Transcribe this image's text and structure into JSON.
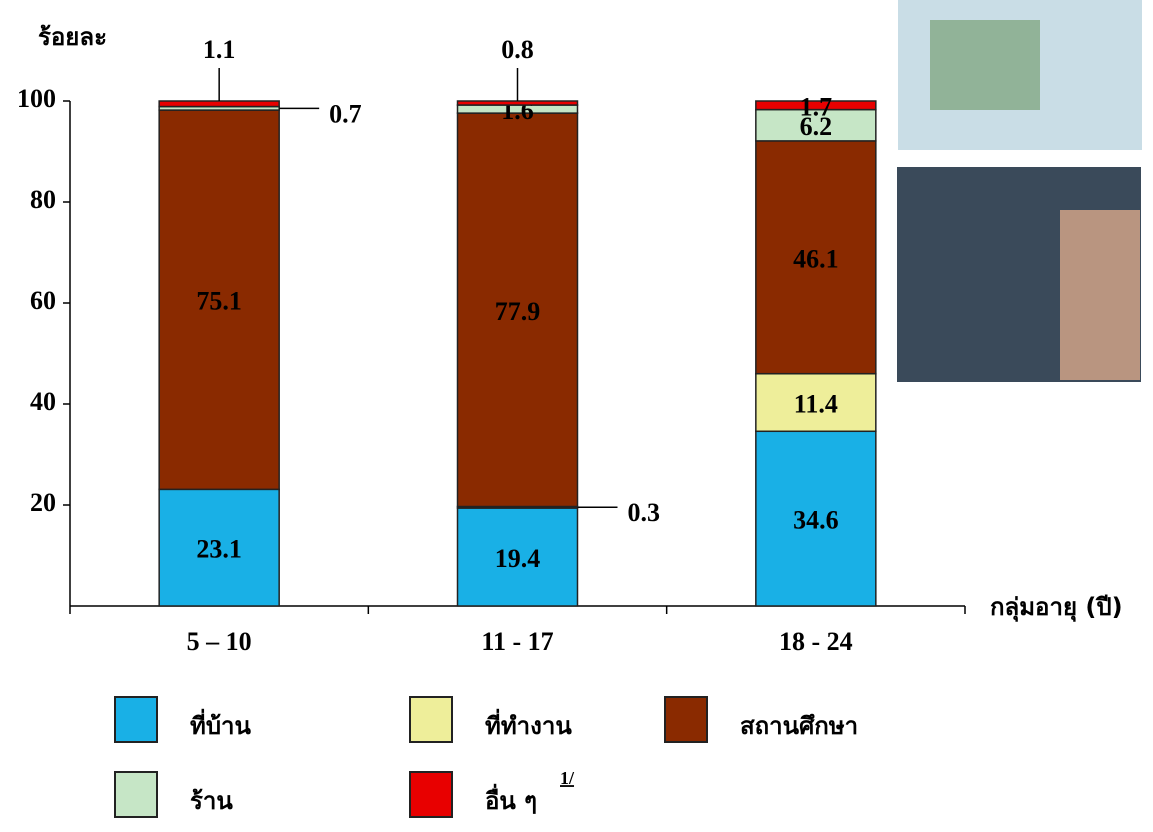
{
  "chart_data": {
    "type": "stacked_bar",
    "y_label": "ร้อยละ",
    "x_label": "กลุ่มอายุ (ปี)",
    "categories": [
      "5 – 10",
      "11 - 17",
      "18 - 24"
    ],
    "series": [
      {
        "name": "ที่บ้าน",
        "color": "#19b0e6",
        "values": [
          23.1,
          19.4,
          34.6
        ]
      },
      {
        "name": "ที่ทำงาน",
        "color": "#eeee9a",
        "values": [
          null,
          0.3,
          11.4
        ]
      },
      {
        "name": "สถานศึกษา",
        "color": "#8a2a00",
        "values": [
          75.1,
          77.9,
          46.1
        ]
      },
      {
        "name": "ร้าน",
        "color": "#c6e6c6",
        "values": [
          0.7,
          1.6,
          6.2
        ]
      },
      {
        "name": "อื่น ๆ",
        "color": "#e80000",
        "values": [
          1.1,
          0.8,
          1.7
        ]
      }
    ],
    "footnote_mark": "1/",
    "ylim": [
      0,
      100
    ],
    "yticks": [
      20,
      40,
      60,
      80,
      100
    ]
  }
}
